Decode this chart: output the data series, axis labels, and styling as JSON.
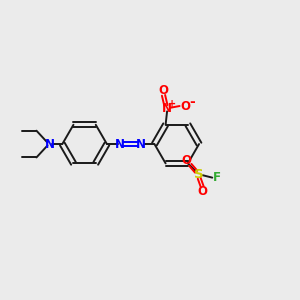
{
  "background_color": "#ebebeb",
  "bond_color": "#1a1a1a",
  "N_color": "#0000ff",
  "O_color": "#ff0000",
  "S_color": "#cccc00",
  "F_color": "#33aa33",
  "figsize": [
    3.0,
    3.0
  ],
  "dpi": 100,
  "xlim": [
    0,
    10
  ],
  "ylim": [
    0,
    10
  ]
}
